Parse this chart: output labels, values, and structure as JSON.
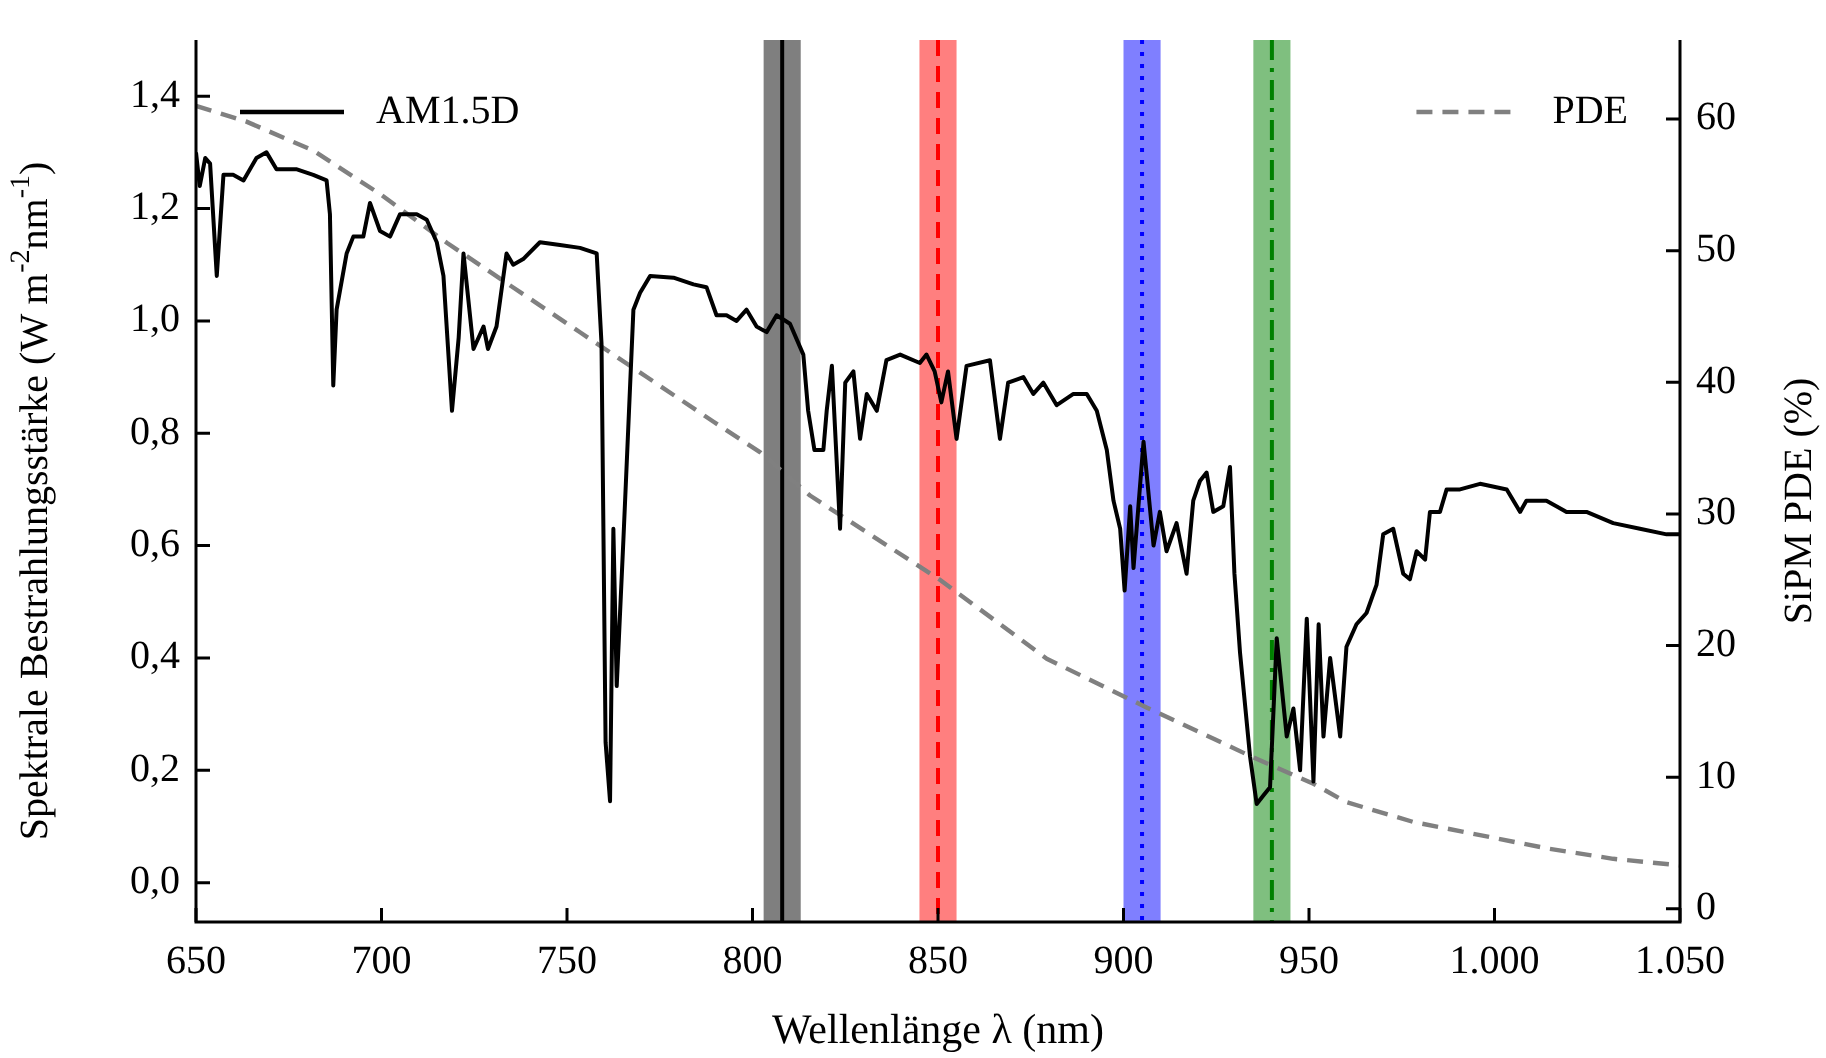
{
  "chart_data": {
    "type": "line",
    "xlabel": "Wellenlänge λ (nm)",
    "ylabel": "Spektrale Bestrahlungsstärke (W m$^{-2}$nm$^{-1}$)",
    "y2label": "SiPM PDE (%)",
    "xlim": [
      650,
      1050
    ],
    "xticks": [
      650,
      700,
      750,
      800,
      850,
      900,
      950,
      {
        "value": 1000,
        "label": "1.000"
      },
      {
        "value": 1050,
        "label": "1.050"
      }
    ],
    "ylim": [
      -0.07,
      1.5
    ],
    "yticks": [
      {
        "value": 0,
        "label": "0,0"
      },
      {
        "value": 0.2,
        "label": "0,2"
      },
      {
        "value": 0.4,
        "label": "0,4"
      },
      {
        "value": 0.6,
        "label": "0,6"
      },
      {
        "value": 0.8,
        "label": "0,8"
      },
      {
        "value": 1,
        "label": "1,0"
      },
      {
        "value": 1.2,
        "label": "1,2"
      },
      {
        "value": 1.4,
        "label": "1,4"
      }
    ],
    "y2lim": [
      -1,
      66
    ],
    "y2ticks": [
      0,
      10,
      20,
      30,
      40,
      50,
      60
    ],
    "legend": "top",
    "grid": false,
    "series": [
      {
        "name": "AM1.5D",
        "color": "#000000",
        "line_style": "solid",
        "x": [
          650,
          651,
          652.5,
          653.8,
          655.6,
          657.4,
          660,
          662.8,
          666.3,
          669,
          671.7,
          677,
          681.6,
          685.2,
          686.1,
          687,
          687.9,
          690.6,
          692.4,
          695.1,
          696.9,
          699.6,
          702.3,
          705,
          709.5,
          712.2,
          714.9,
          716.7,
          719,
          720.8,
          722.1,
          724.8,
          727.5,
          728.7,
          731,
          733.7,
          735.5,
          738.2,
          742.7,
          748.1,
          753.5,
          758,
          759.3,
          760.4,
          761.6,
          762.5,
          763.4,
          765.2,
          767.9,
          769.7,
          772.4,
          778.7,
          784.1,
          787.6,
          790.3,
          793,
          795.7,
          798.4,
          801.1,
          803.8,
          806.5,
          810.1,
          813.7,
          815,
          816.7,
          819.1,
          820,
          821.4,
          823.6,
          825,
          827.2,
          829,
          830.8,
          833.5,
          836.1,
          839.8,
          845.1,
          846.9,
          849.1,
          850.9,
          852.7,
          855,
          857.7,
          864,
          866.7,
          868.9,
          873,
          875.7,
          878.4,
          882,
          886.5,
          890.1,
          892.8,
          895.5,
          897.3,
          899.1,
          900.3,
          901.8,
          902.7,
          905.4,
          908.1,
          909.8,
          911.6,
          914.3,
          917,
          918.8,
          920.6,
          922.4,
          924.2,
          926.9,
          928.7,
          929.9,
          931.4,
          934.1,
          935.9,
          937.7,
          939.5,
          941.3,
          944,
          945.8,
          947.6,
          949.4,
          951.2,
          952.6,
          953.9,
          955.7,
          958.4,
          960.1,
          962.8,
          965.5,
          968.2,
          970,
          972.7,
          975.4,
          977.2,
          979,
          981.3,
          982.6,
          985.3,
          987.1,
          990.7,
          996.1,
          1003.3,
          1006.9,
          1008.6,
          1014,
          1019.4,
          1024.8,
          1032,
          1039.2,
          1046.4,
          1050
        ],
        "values": [
          1.3,
          1.24,
          1.29,
          1.28,
          1.08,
          1.26,
          1.26,
          1.25,
          1.29,
          1.3,
          1.27,
          1.27,
          1.26,
          1.25,
          1.19,
          0.885,
          1.02,
          1.12,
          1.15,
          1.15,
          1.21,
          1.16,
          1.15,
          1.19,
          1.19,
          1.18,
          1.14,
          1.08,
          0.84,
          0.97,
          1.12,
          0.95,
          0.99,
          0.95,
          0.99,
          1.12,
          1.1,
          1.11,
          1.14,
          1.135,
          1.13,
          1.12,
          0.96,
          0.25,
          0.145,
          0.63,
          0.35,
          0.61,
          1.02,
          1.05,
          1.08,
          1.077,
          1.065,
          1.06,
          1.01,
          1.01,
          1,
          1.02,
          0.99,
          0.98,
          1.01,
          0.995,
          0.94,
          0.84,
          0.77,
          0.77,
          0.84,
          0.92,
          0.63,
          0.89,
          0.91,
          0.79,
          0.87,
          0.84,
          0.93,
          0.94,
          0.925,
          0.94,
          0.91,
          0.855,
          0.91,
          0.79,
          0.92,
          0.93,
          0.79,
          0.89,
          0.9,
          0.87,
          0.89,
          0.85,
          0.87,
          0.87,
          0.84,
          0.77,
          0.68,
          0.63,
          0.52,
          0.67,
          0.56,
          0.785,
          0.6,
          0.66,
          0.59,
          0.64,
          0.55,
          0.68,
          0.715,
          0.73,
          0.66,
          0.67,
          0.74,
          0.55,
          0.41,
          0.225,
          0.14,
          0.155,
          0.17,
          0.435,
          0.26,
          0.31,
          0.2,
          0.47,
          0.18,
          0.46,
          0.26,
          0.4,
          0.26,
          0.42,
          0.46,
          0.48,
          0.53,
          0.62,
          0.63,
          0.55,
          0.54,
          0.59,
          0.575,
          0.66,
          0.66,
          0.7,
          0.7,
          0.71,
          0.7,
          0.66,
          0.68,
          0.68,
          0.66,
          0.66,
          0.64,
          0.63,
          0.62,
          0.62
        ]
      },
      {
        "name": "PDE",
        "color": "#808080",
        "line_style": "dashed",
        "axis": "y2",
        "x": [
          650,
          663.6,
          681.6,
          699.6,
          717.6,
          735.5,
          753.5,
          771.5,
          789.5,
          802,
          815.5,
          850.5,
          879.3,
          906.2,
          935,
          951.2,
          960.1,
          978.1,
          996.1,
          1014,
          1032,
          1050
        ],
        "values": [
          61,
          59.8,
          57.6,
          54.3,
          50.6,
          47.2,
          43.8,
          40.4,
          37,
          34.7,
          31.4,
          25,
          19,
          15.3,
          11.5,
          9.5,
          8.1,
          6.6,
          5.6,
          4.6,
          3.8,
          3.3
        ]
      }
    ],
    "bands": [
      {
        "axis": "x",
        "from": 803,
        "to": 813,
        "color": "#000000"
      },
      {
        "axis": "x",
        "from": 845,
        "to": 855,
        "color": "#ff0000"
      },
      {
        "axis": "x",
        "from": 900,
        "to": 910,
        "color": "#0000ff"
      },
      {
        "axis": "x",
        "from": 935,
        "to": 945,
        "color": "#008000"
      }
    ],
    "ref_lines": [
      {
        "axis": "x",
        "value": 808,
        "color": "#000000",
        "line_style": "solid"
      },
      {
        "axis": "x",
        "value": 850,
        "color": "#ff0000",
        "line_style": "dashed"
      },
      {
        "axis": "x",
        "value": 905,
        "color": "#0000ff",
        "line_style": "dotted"
      },
      {
        "axis": "x",
        "value": 940,
        "color": "#008000",
        "line_style": "dashdot"
      }
    ]
  }
}
